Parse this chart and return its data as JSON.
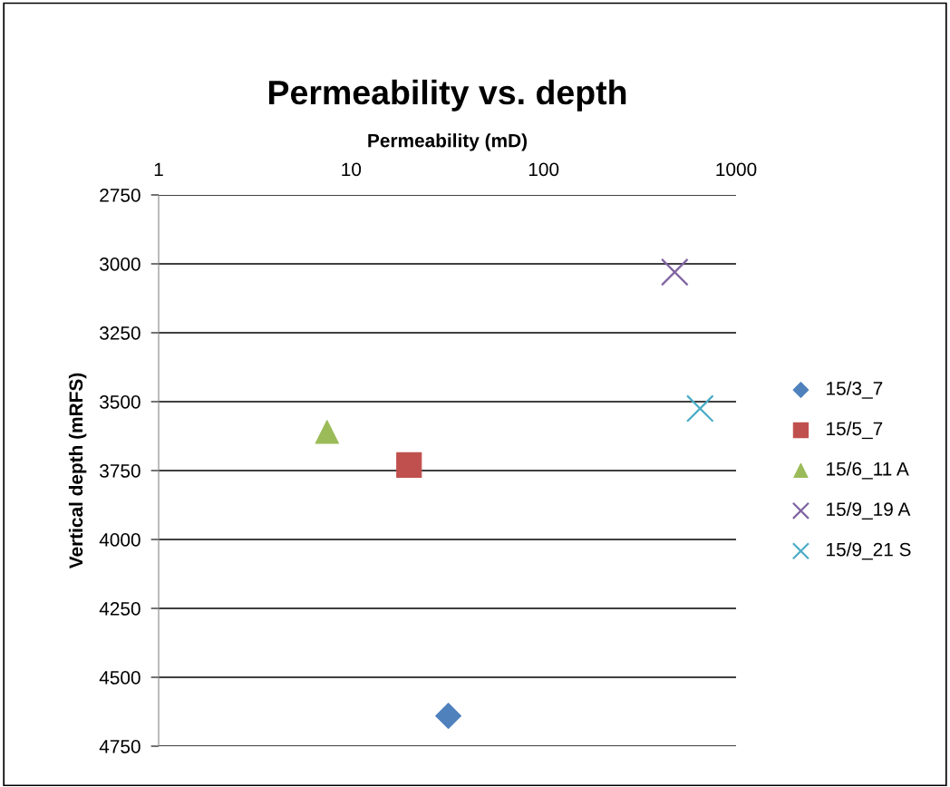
{
  "chart_data": {
    "type": "scatter",
    "title": "Permeability vs. depth",
    "xlabel": "Permeability (mD)",
    "ylabel": "Vertical depth (mRFS)",
    "log": "x",
    "xlim": [
      1,
      1000
    ],
    "xticks": [
      1,
      10,
      100,
      1000
    ],
    "ylim": [
      4750,
      2750
    ],
    "yticks": [
      2750,
      3000,
      3250,
      3500,
      3750,
      4000,
      4250,
      4500,
      4750
    ],
    "grid": "y",
    "legend": "right",
    "series": [
      {
        "name": "15/3_7",
        "color": "#4f81bd",
        "marker": "diamond",
        "x": [
          32
        ],
        "values": [
          4640
        ]
      },
      {
        "name": "15/5_7",
        "color": "#c0504d",
        "marker": "square",
        "x": [
          20
        ],
        "values": [
          3730
        ]
      },
      {
        "name": "15/6_11 A",
        "color": "#9bbb59",
        "marker": "triangle",
        "x": [
          7.5
        ],
        "values": [
          3610
        ]
      },
      {
        "name": "15/9_19 A",
        "color": "#8064a2",
        "marker": "cross",
        "x": [
          480
        ],
        "values": [
          3030
        ]
      },
      {
        "name": "15/9_21 S",
        "color": "#4bacc6",
        "marker": "cross",
        "x": [
          650
        ],
        "values": [
          3525
        ]
      }
    ]
  }
}
